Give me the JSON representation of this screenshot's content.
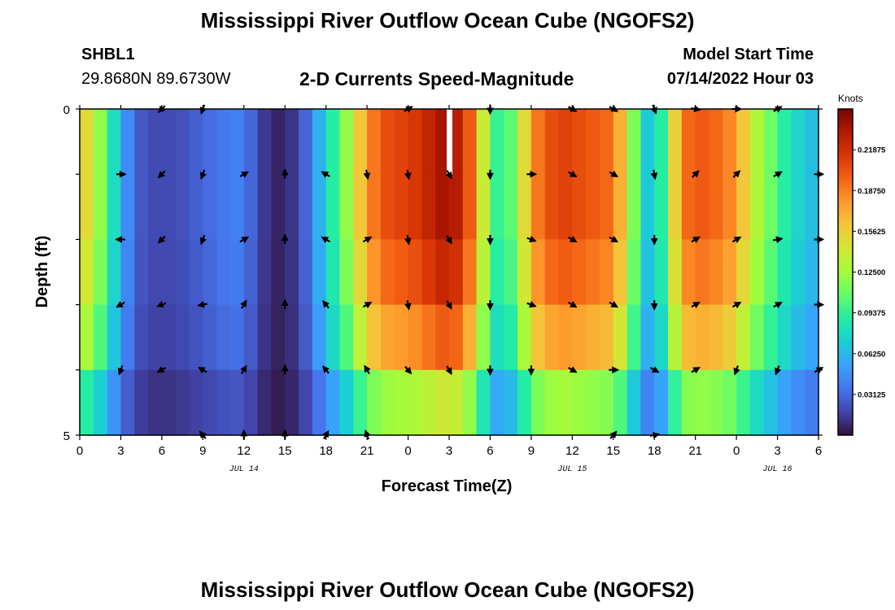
{
  "header": {
    "title": "Mississippi River Outflow Ocean Cube (NGOFS2)",
    "station_id": "SHBL1",
    "station_coords": "29.8680N  89.6730W",
    "plot_subtitle": "2-D Currents Speed-Magnitude",
    "model_start_label": "Model Start Time",
    "model_start_value": "07/14/2022 Hour 03"
  },
  "footer": {
    "title": "Mississippi River Outflow Ocean Cube (NGOFS2)"
  },
  "chart_data": {
    "type": "heatmap",
    "xlabel": "Forecast Time(Z)",
    "ylabel": "Depth (ft)",
    "colorbar_label": "Knots",
    "colorbar_ticks": [
      "0.03125",
      "0.06250",
      "0.09375",
      "0.12500",
      "0.15625",
      "0.18750",
      "0.21875"
    ],
    "colorbar_range": [
      0.0,
      0.25
    ],
    "colormap": [
      "#30123b",
      "#4145ab",
      "#4675ed",
      "#39a2fc",
      "#1bcfd4",
      "#24eca6",
      "#61fc6c",
      "#a4fc3b",
      "#d1e834",
      "#f3c63a",
      "#fe9b2d",
      "#f36315",
      "#d93806",
      "#b11901",
      "#7a0402"
    ],
    "x_tick_labels": [
      "0",
      "3",
      "6",
      "9",
      "12",
      "15",
      "18",
      "21",
      "0",
      "3",
      "6",
      "9",
      "12",
      "15",
      "18",
      "21",
      "0",
      "3",
      "6"
    ],
    "x_hours": [
      0,
      3,
      6,
      9,
      12,
      15,
      18,
      21,
      24,
      27,
      30,
      33,
      36,
      39,
      42,
      45,
      48,
      51,
      54
    ],
    "x_range_hours": [
      0,
      54
    ],
    "date_labels": [
      {
        "text": "JUL 14",
        "hour": 12
      },
      {
        "text": "JUL 15",
        "hour": 36
      },
      {
        "text": "JUL 16",
        "hour": 51
      }
    ],
    "y_tick_labels": [
      "0",
      "5"
    ],
    "y_range": [
      0,
      5
    ],
    "depth_rows": 5,
    "missing_cells": [
      {
        "hour": 27,
        "row": 0
      }
    ],
    "speed_profile_hours": [
      0,
      1,
      2,
      3,
      4,
      5,
      6,
      7,
      8,
      9,
      10,
      11,
      12,
      13,
      14,
      15,
      16,
      17,
      18,
      19,
      20,
      21,
      22,
      23,
      24,
      25,
      26,
      27,
      28,
      29,
      30,
      31,
      32,
      33,
      34,
      35,
      36,
      37,
      38,
      39,
      40,
      41,
      42,
      43,
      44,
      45,
      46,
      47,
      48,
      49,
      50,
      51,
      52,
      53,
      54
    ],
    "speed_profile": [
      0.16,
      0.14,
      0.1,
      0.06,
      0.03,
      0.02,
      0.02,
      0.02,
      0.025,
      0.03,
      0.035,
      0.04,
      0.04,
      0.02,
      0.008,
      0.005,
      0.02,
      0.04,
      0.08,
      0.1,
      0.14,
      0.18,
      0.2,
      0.21,
      0.21,
      0.22,
      0.23,
      0.24,
      0.22,
      0.18,
      0.1,
      0.09,
      0.12,
      0.18,
      0.2,
      0.21,
      0.21,
      0.2,
      0.2,
      0.19,
      0.15,
      0.08,
      0.06,
      0.12,
      0.19,
      0.2,
      0.2,
      0.19,
      0.18,
      0.14,
      0.12,
      0.1,
      0.08,
      0.07,
      0.06
    ],
    "row_speed_factors": [
      1.0,
      1.0,
      0.95,
      0.85,
      0.6,
      0.4
    ],
    "vector_hours": [
      0,
      3,
      6,
      9,
      12,
      15,
      18,
      21,
      24,
      27,
      30,
      33,
      36,
      39,
      42,
      45,
      48,
      51,
      54
    ],
    "vector_depths": [
      0,
      1,
      2,
      3,
      4,
      5
    ],
    "vector_directions_deg": [
      [
        90,
        90,
        225,
        200,
        180,
        0,
        0,
        60,
        60,
        90,
        180,
        90,
        120,
        120,
        160,
        100,
        90,
        60,
        90
      ],
      [
        270,
        90,
        225,
        200,
        60,
        0,
        300,
        170,
        170,
        150,
        180,
        90,
        120,
        120,
        170,
        45,
        45,
        60,
        90
      ],
      [
        270,
        270,
        225,
        200,
        60,
        0,
        300,
        60,
        170,
        150,
        180,
        110,
        120,
        120,
        180,
        60,
        60,
        80,
        90
      ],
      [
        270,
        240,
        250,
        260,
        30,
        0,
        320,
        60,
        170,
        150,
        180,
        110,
        120,
        120,
        180,
        60,
        60,
        60,
        90
      ],
      [
        270,
        200,
        240,
        300,
        30,
        0,
        320,
        330,
        140,
        150,
        180,
        180,
        120,
        90,
        120,
        60,
        200,
        200,
        60
      ],
      [
        0,
        0,
        0,
        320,
        0,
        0,
        30,
        340,
        0,
        0,
        0,
        0,
        0,
        40,
        80,
        0,
        0,
        0,
        0
      ]
    ],
    "vector_visible": [
      [
        0,
        0,
        1,
        1,
        0,
        0,
        0,
        0,
        1,
        0,
        1,
        0,
        1,
        1,
        1,
        1,
        1,
        1,
        0
      ],
      [
        0,
        1,
        1,
        1,
        1,
        1,
        1,
        1,
        1,
        1,
        1,
        1,
        1,
        1,
        1,
        1,
        1,
        1,
        1
      ],
      [
        0,
        1,
        1,
        1,
        1,
        1,
        1,
        1,
        1,
        1,
        1,
        1,
        1,
        1,
        1,
        1,
        1,
        1,
        1
      ],
      [
        0,
        1,
        1,
        1,
        1,
        1,
        1,
        1,
        1,
        1,
        1,
        1,
        1,
        1,
        1,
        1,
        1,
        1,
        1
      ],
      [
        0,
        1,
        1,
        1,
        1,
        1,
        1,
        1,
        1,
        1,
        1,
        1,
        1,
        1,
        1,
        1,
        1,
        1,
        1
      ],
      [
        0,
        0,
        0,
        1,
        1,
        1,
        1,
        1,
        0,
        0,
        0,
        0,
        0,
        1,
        1,
        0,
        0,
        0,
        0
      ]
    ]
  }
}
